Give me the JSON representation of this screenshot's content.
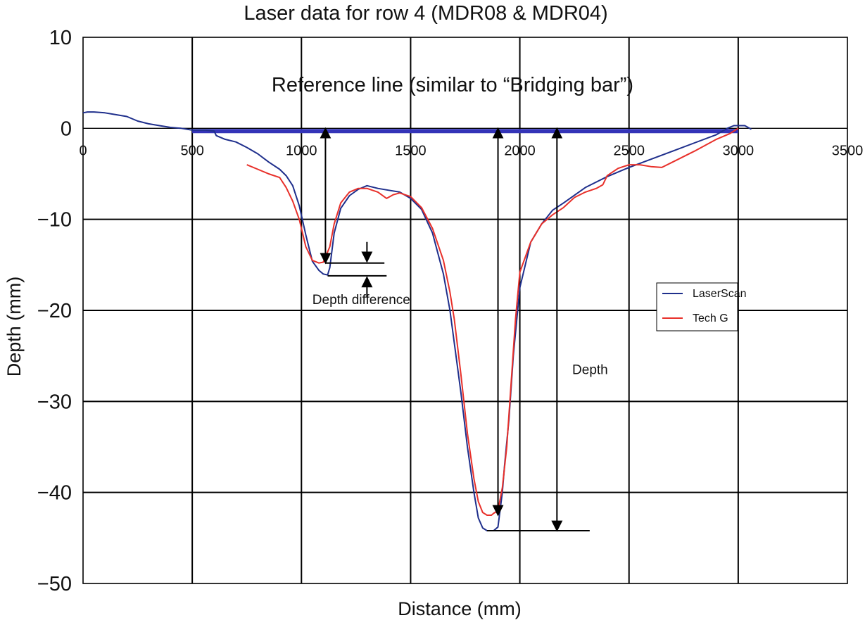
{
  "chart_data": {
    "type": "line",
    "title": "Laser data for row 4 (MDR08 & MDR04)",
    "xlabel": "Distance (mm)",
    "ylabel": "Depth (mm)",
    "xlim": [
      0,
      3500
    ],
    "ylim": [
      -50,
      10
    ],
    "x_ticks": [
      0,
      500,
      1000,
      1500,
      2000,
      2500,
      3000,
      3500
    ],
    "y_ticks": [
      10,
      0,
      -10,
      -20,
      -30,
      -40,
      -50
    ],
    "y_tick_labels": [
      "10",
      "0",
      "−10",
      "−20",
      "−30",
      "−40",
      "−50"
    ],
    "grid": true,
    "legend_position": "right",
    "colors": {
      "LaserScan": "#1f2f8c",
      "Tech G": "#e8302a",
      "reference_line": "#3434b8",
      "annotation": "#000000",
      "grid": "#000000"
    },
    "series": [
      {
        "name": "LaserScan",
        "x": [
          0,
          20,
          50,
          100,
          150,
          200,
          250,
          300,
          350,
          400,
          450,
          500,
          560,
          600,
          610,
          650,
          700,
          750,
          800,
          850,
          900,
          930,
          960,
          990,
          1020,
          1050,
          1080,
          1100,
          1120,
          1130,
          1150,
          1180,
          1220,
          1260,
          1300,
          1350,
          1400,
          1450,
          1500,
          1550,
          1600,
          1650,
          1680,
          1700,
          1730,
          1760,
          1790,
          1810,
          1830,
          1850,
          1860,
          1870,
          1880,
          1900,
          1920,
          1930,
          1950,
          1970,
          2000,
          2050,
          2100,
          2150,
          2200,
          2300,
          2400,
          2500,
          2600,
          2700,
          2800,
          2900,
          2950,
          2980,
          3000,
          3030,
          3060
        ],
        "y": [
          1.7,
          1.8,
          1.8,
          1.7,
          1.5,
          1.3,
          0.8,
          0.5,
          0.3,
          0.1,
          0.0,
          -0.2,
          -0.2,
          -0.3,
          -0.8,
          -1.2,
          -1.5,
          -2.1,
          -2.8,
          -3.7,
          -4.5,
          -5.2,
          -6.3,
          -8.5,
          -11.7,
          -14.6,
          -15.6,
          -16.0,
          -16.1,
          -15.3,
          -11.5,
          -8.8,
          -7.4,
          -6.7,
          -6.3,
          -6.6,
          -6.8,
          -7.0,
          -7.7,
          -8.9,
          -11.5,
          -16.0,
          -20.0,
          -23.6,
          -29.0,
          -35.0,
          -40.0,
          -42.8,
          -43.9,
          -44.2,
          -44.2,
          -44.2,
          -44.2,
          -43.8,
          -40.0,
          -37.0,
          -32.0,
          -25.0,
          -17.5,
          -12.5,
          -10.5,
          -9.0,
          -8.2,
          -6.5,
          -5.3,
          -4.3,
          -3.4,
          -2.5,
          -1.6,
          -0.7,
          0.0,
          0.3,
          0.3,
          0.3,
          -0.1
        ]
      },
      {
        "name": "Tech G",
        "x": [
          750,
          800,
          850,
          900,
          930,
          960,
          990,
          1020,
          1050,
          1080,
          1100,
          1130,
          1150,
          1180,
          1220,
          1260,
          1300,
          1350,
          1390,
          1420,
          1450,
          1500,
          1550,
          1600,
          1650,
          1680,
          1700,
          1730,
          1760,
          1790,
          1810,
          1830,
          1850,
          1870,
          1880,
          1900,
          1920,
          1940,
          1960,
          1980,
          2000,
          2050,
          2100,
          2150,
          2200,
          2250,
          2300,
          2350,
          2380,
          2400,
          2450,
          2500,
          2550,
          2600,
          2650,
          2700,
          2800,
          2900,
          2960,
          3000
        ],
        "y": [
          -4.0,
          -4.5,
          -5.0,
          -5.4,
          -6.5,
          -8.0,
          -10.0,
          -13.0,
          -14.5,
          -14.8,
          -14.7,
          -13.0,
          -10.5,
          -8.2,
          -7.0,
          -6.6,
          -6.6,
          -7.0,
          -7.7,
          -7.3,
          -7.1,
          -7.5,
          -8.7,
          -11.0,
          -14.5,
          -18.0,
          -21.0,
          -27.0,
          -33.5,
          -38.5,
          -41.0,
          -42.2,
          -42.5,
          -42.5,
          -42.3,
          -42.0,
          -39.5,
          -35.0,
          -28.0,
          -21.0,
          -15.8,
          -12.5,
          -10.5,
          -9.5,
          -8.7,
          -7.6,
          -7.0,
          -6.6,
          -6.2,
          -5.2,
          -4.4,
          -4.0,
          -4.0,
          -4.2,
          -4.3,
          -3.7,
          -2.5,
          -1.2,
          -0.6,
          0.0
        ]
      }
    ],
    "reference_line": {
      "label": "Reference line (similar to “Bridging bar”)",
      "x_start": 500,
      "x_end": 3000,
      "y": -0.3
    },
    "annotations": [
      {
        "label": "Depth difference",
        "type": "depth-difference",
        "x": 1300,
        "y_upper": -14.8,
        "y_lower": -16.2,
        "text_x": 1050,
        "text_y": -19.3
      },
      {
        "label": "Depth",
        "type": "depth",
        "x": 2170,
        "y_from": 0,
        "y_to": -44.2,
        "text_x": 2240,
        "text_y": -27.0
      },
      {
        "label": "",
        "type": "vertical-arrow",
        "x": 1110,
        "y_from": 0,
        "y_to": -14.8
      },
      {
        "label": "",
        "type": "vertical-arrow",
        "x": 1900,
        "y_from": 0,
        "y_to": -42.5
      }
    ]
  }
}
